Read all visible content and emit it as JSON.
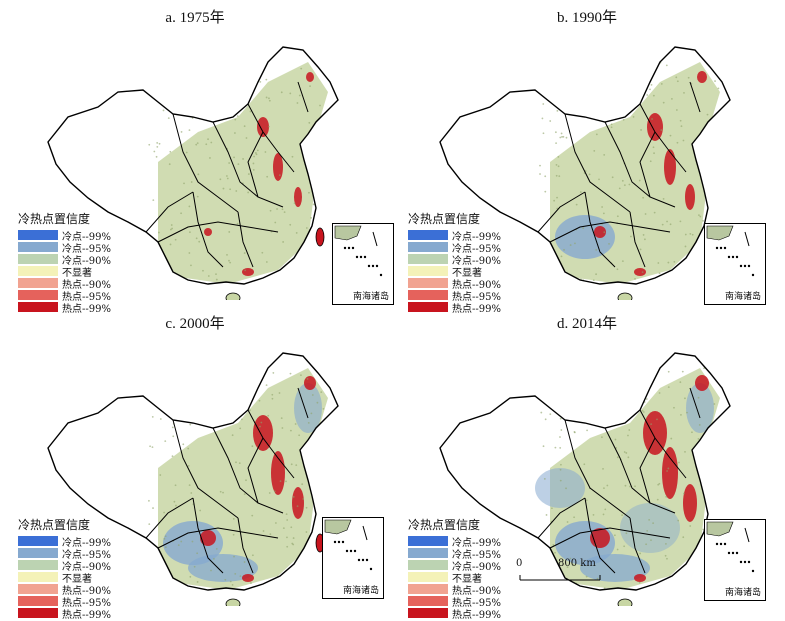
{
  "panels": [
    {
      "title": "a. 1975年",
      "intensity": 0
    },
    {
      "title": "b. 1990年",
      "intensity": 1
    },
    {
      "title": "c. 2000年",
      "intensity": 2
    },
    {
      "title": "d. 2014年",
      "intensity": 3
    }
  ],
  "legend": {
    "title": "冷热点置信度",
    "items": [
      {
        "label": "冷点--99%",
        "color": "#3b6fd6"
      },
      {
        "label": "冷点--95%",
        "color": "#86a9cf"
      },
      {
        "label": "冷点--90%",
        "color": "#bcd3b2"
      },
      {
        "label": "不显著",
        "color": "#f4f2b8"
      },
      {
        "label": "热点--90%",
        "color": "#f1a391"
      },
      {
        "label": "热点--95%",
        "color": "#e5625c"
      },
      {
        "label": "热点--99%",
        "color": "#c8141e"
      }
    ]
  },
  "inset_label": "南海诸岛",
  "scalebar": {
    "start": "0",
    "end": "800 km"
  },
  "colors": {
    "land_fill": "#ffffff",
    "gray_green": "#c8d6a4",
    "blue": "#86a9cf",
    "red": "#c8141e",
    "border": "#000000"
  }
}
